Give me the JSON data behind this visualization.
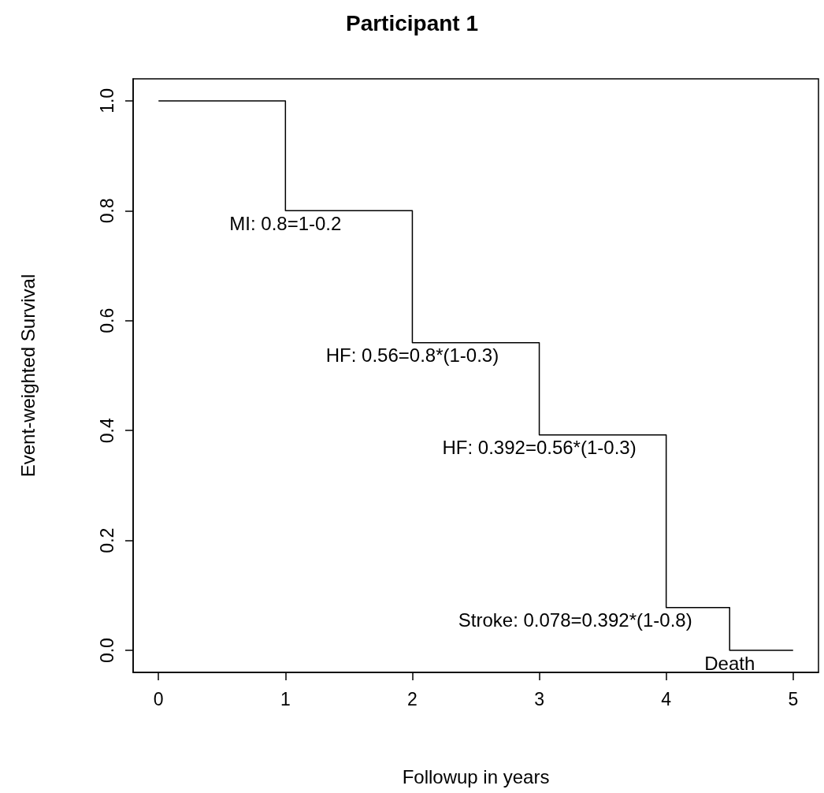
{
  "chart_data": {
    "type": "step",
    "title": "Participant 1",
    "xlabel": "Followup in years",
    "ylabel": "Event-weighted Survival",
    "x": [
      0,
      1,
      2,
      3,
      4,
      4.5,
      5
    ],
    "series": [
      {
        "color": "#000000",
        "values": [
          1,
          0.8,
          0.56,
          0.392,
          0.078,
          0,
          0
        ]
      }
    ],
    "xlim": [
      -0.2,
      5.2
    ],
    "xticks": [
      0,
      1,
      2,
      3,
      4,
      5
    ],
    "ylim": [
      -0.04,
      1.04
    ],
    "yticks": [
      {
        "value": 0,
        "label": "0.0"
      },
      {
        "value": 0.2,
        "label": "0.2"
      },
      {
        "value": 0.4,
        "label": "0.4"
      },
      {
        "value": 0.6,
        "label": "0.6"
      },
      {
        "value": 0.8,
        "label": "0.8"
      },
      {
        "value": 1,
        "label": "1.0"
      }
    ],
    "annotations": [
      {
        "text": "MI: 0.8=1-0.2",
        "x": 1,
        "y": 0.8
      },
      {
        "text": "HF: 0.56=0.8*(1-0.3)",
        "x": 2,
        "y": 0.56
      },
      {
        "text": "HF: 0.392=0.56*(1-0.3)",
        "x": 3,
        "y": 0.392
      },
      {
        "text": "Stroke: 0.078=0.392*(1-0.8)",
        "x": 4,
        "y": 0.078
      },
      {
        "text": "Death",
        "x": 4.5,
        "y": 0
      }
    ],
    "grid": false,
    "marker": "none",
    "line_style": "solid"
  }
}
